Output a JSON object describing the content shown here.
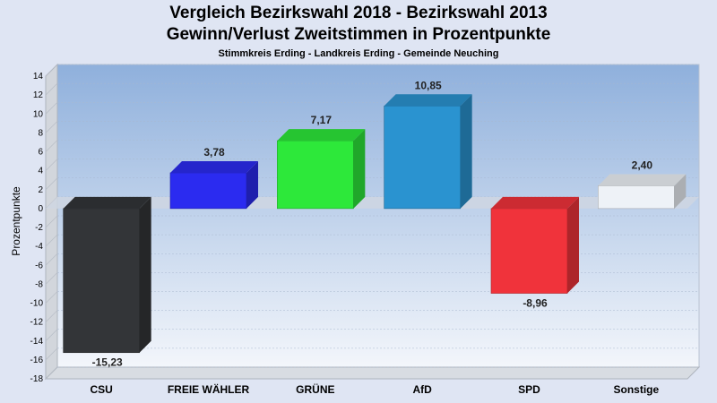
{
  "chart_data": {
    "type": "bar",
    "title": "Vergleich Bezirkswahl 2018 - Bezirkswahl 2013",
    "subtitle": "Gewinn/Verlust Zweitstimmen in Prozentpunkte",
    "subtitle2": "Stimmkreis Erding - Landkreis Erding - Gemeinde Neuching",
    "ylabel": "Prozentpunkte",
    "ylim": [
      -18,
      14
    ],
    "yticks": [
      14,
      12,
      10,
      8,
      6,
      4,
      2,
      0,
      -2,
      -4,
      -6,
      -8,
      -10,
      -12,
      -14,
      -16,
      -18
    ],
    "grid": true,
    "categories": [
      "CSU",
      "FREIE WÄHLER",
      "GRÜNE",
      "AfD",
      "SPD",
      "Sonstige"
    ],
    "values": [
      -15.23,
      3.78,
      7.17,
      10.85,
      -8.96,
      2.4
    ],
    "value_labels": [
      "-15,23",
      "3,78",
      "7,17",
      "10,85",
      "-8,96",
      "2,40"
    ],
    "colors": [
      "#333538",
      "#2b2bf0",
      "#2de83a",
      "#2a93d0",
      "#f0333b",
      "#eef2f7"
    ]
  }
}
